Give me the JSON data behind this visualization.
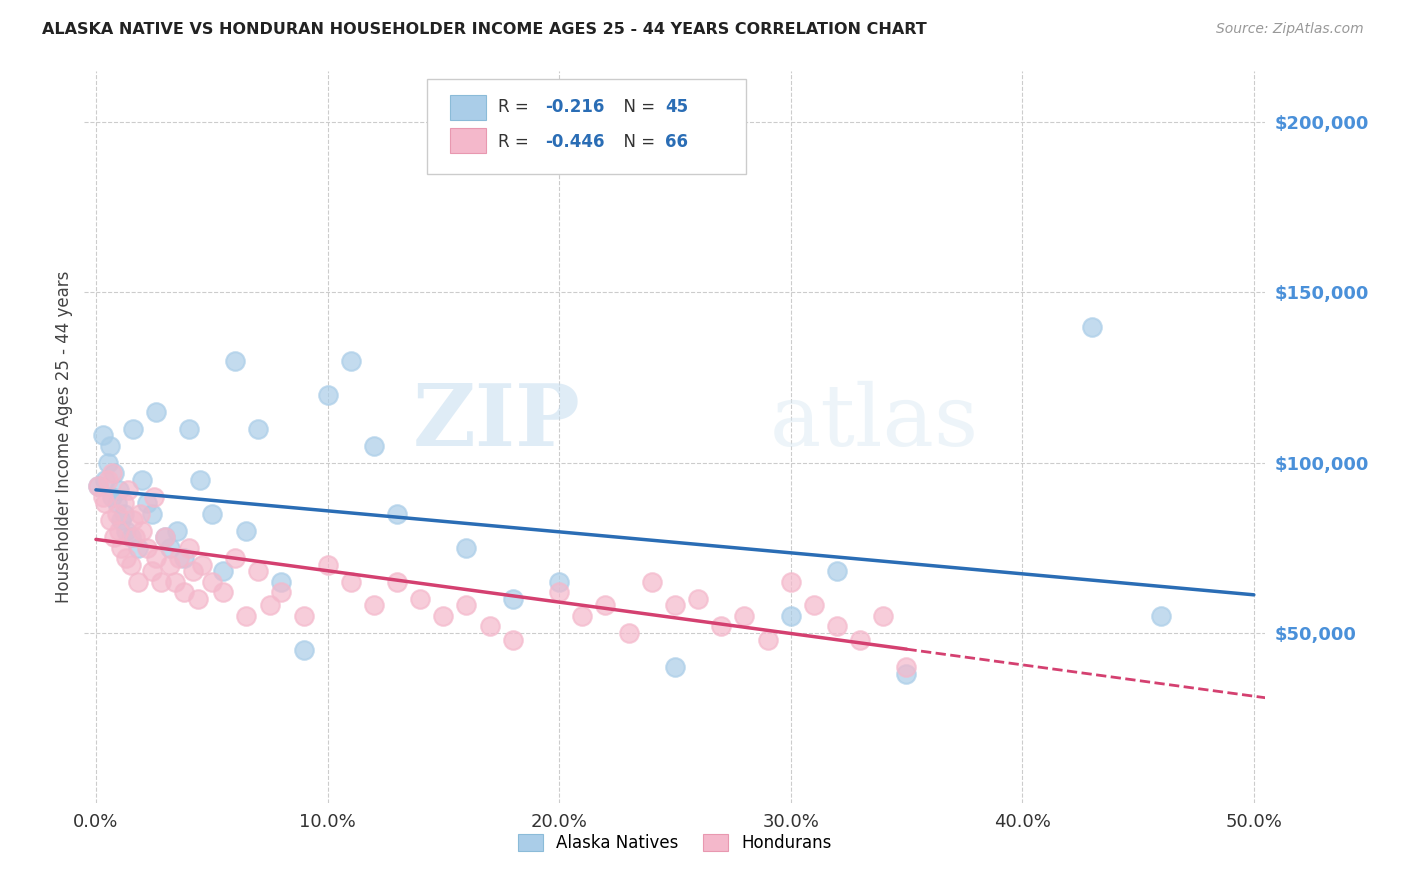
{
  "title": "ALASKA NATIVE VS HONDURAN HOUSEHOLDER INCOME AGES 25 - 44 YEARS CORRELATION CHART",
  "source": "Source: ZipAtlas.com",
  "ylabel": "Householder Income Ages 25 - 44 years",
  "xlabel_ticks": [
    "0.0%",
    "10.0%",
    "20.0%",
    "30.0%",
    "40.0%",
    "50.0%"
  ],
  "xlabel_vals": [
    0.0,
    0.1,
    0.2,
    0.3,
    0.4,
    0.5
  ],
  "ytick_labels": [
    "$50,000",
    "$100,000",
    "$150,000",
    "$200,000"
  ],
  "ytick_vals": [
    50000,
    100000,
    150000,
    200000
  ],
  "ylim": [
    0,
    215000
  ],
  "xlim": [
    -0.005,
    0.505
  ],
  "legend_label_blue": "Alaska Natives",
  "legend_label_pink": "Hondurans",
  "blue_color": "#aacde8",
  "pink_color": "#f4b8cb",
  "blue_line_color": "#2a6db5",
  "pink_line_color": "#d44070",
  "tick_color": "#4a90d9",
  "watermark_zip": "ZIP",
  "watermark_atlas": "atlas",
  "alaska_x": [
    0.001,
    0.003,
    0.004,
    0.005,
    0.006,
    0.007,
    0.008,
    0.009,
    0.01,
    0.011,
    0.012,
    0.013,
    0.015,
    0.016,
    0.018,
    0.02,
    0.022,
    0.024,
    0.026,
    0.03,
    0.032,
    0.035,
    0.038,
    0.04,
    0.045,
    0.05,
    0.055,
    0.06,
    0.065,
    0.07,
    0.08,
    0.09,
    0.1,
    0.11,
    0.12,
    0.13,
    0.16,
    0.18,
    0.2,
    0.25,
    0.3,
    0.32,
    0.35,
    0.43,
    0.46
  ],
  "alaska_y": [
    93000,
    108000,
    95000,
    100000,
    105000,
    90000,
    97000,
    88000,
    92000,
    83000,
    85000,
    80000,
    78000,
    110000,
    75000,
    95000,
    88000,
    85000,
    115000,
    78000,
    75000,
    80000,
    72000,
    110000,
    95000,
    85000,
    68000,
    130000,
    80000,
    110000,
    65000,
    45000,
    120000,
    130000,
    105000,
    85000,
    75000,
    60000,
    65000,
    40000,
    55000,
    68000,
    38000,
    140000,
    55000
  ],
  "honduran_x": [
    0.001,
    0.003,
    0.004,
    0.005,
    0.006,
    0.007,
    0.008,
    0.009,
    0.01,
    0.011,
    0.012,
    0.013,
    0.014,
    0.015,
    0.016,
    0.017,
    0.018,
    0.019,
    0.02,
    0.022,
    0.024,
    0.025,
    0.026,
    0.028,
    0.03,
    0.032,
    0.034,
    0.036,
    0.038,
    0.04,
    0.042,
    0.044,
    0.046,
    0.05,
    0.055,
    0.06,
    0.065,
    0.07,
    0.075,
    0.08,
    0.09,
    0.1,
    0.11,
    0.12,
    0.13,
    0.14,
    0.15,
    0.16,
    0.17,
    0.18,
    0.2,
    0.21,
    0.22,
    0.23,
    0.24,
    0.25,
    0.26,
    0.27,
    0.28,
    0.29,
    0.3,
    0.31,
    0.32,
    0.33,
    0.34,
    0.35
  ],
  "honduran_y": [
    93000,
    90000,
    88000,
    95000,
    83000,
    97000,
    78000,
    85000,
    80000,
    75000,
    88000,
    72000,
    92000,
    70000,
    83000,
    78000,
    65000,
    85000,
    80000,
    75000,
    68000,
    90000,
    72000,
    65000,
    78000,
    70000,
    65000,
    72000,
    62000,
    75000,
    68000,
    60000,
    70000,
    65000,
    62000,
    72000,
    55000,
    68000,
    58000,
    62000,
    55000,
    70000,
    65000,
    58000,
    65000,
    60000,
    55000,
    58000,
    52000,
    48000,
    62000,
    55000,
    58000,
    50000,
    65000,
    58000,
    60000,
    52000,
    55000,
    48000,
    65000,
    58000,
    52000,
    48000,
    55000,
    40000
  ]
}
